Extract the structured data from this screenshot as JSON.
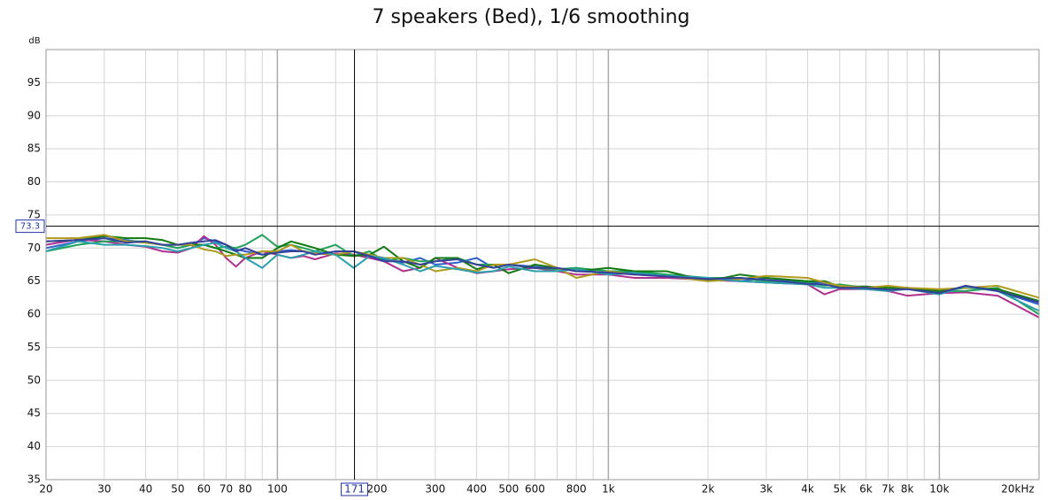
{
  "chart_data": {
    "type": "line",
    "title": "7 speakers (Bed), 1/6 smoothing",
    "y_label": "dB",
    "log_x": true,
    "grid": true,
    "xlim": [
      20,
      20000
    ],
    "ylim": [
      35,
      100
    ],
    "yticks": [
      35,
      40,
      45,
      50,
      55,
      60,
      65,
      70,
      75,
      80,
      85,
      90,
      95
    ],
    "xticks": [
      20,
      30,
      40,
      50,
      60,
      70,
      80,
      100,
      200,
      300,
      400,
      500,
      600,
      800,
      {
        "value": 1000,
        "label": "1k"
      },
      {
        "value": 2000,
        "label": "2k"
      },
      {
        "value": 3000,
        "label": "3k"
      },
      {
        "value": 4000,
        "label": "4k"
      },
      {
        "value": 5000,
        "label": "5k"
      },
      {
        "value": 6000,
        "label": "6k"
      },
      {
        "value": 7000,
        "label": "7k"
      },
      {
        "value": 8000,
        "label": "8k"
      },
      {
        "value": 10000,
        "label": "10k"
      },
      {
        "value": 20000,
        "label": "20kHz"
      }
    ],
    "xminorticks": [
      90,
      150,
      700,
      900,
      9000
    ],
    "cursor": {
      "x": 171,
      "y": 73.3
    },
    "x": [
      20,
      25,
      30,
      35,
      40,
      45,
      50,
      55,
      60,
      65,
      70,
      75,
      80,
      90,
      100,
      110,
      120,
      130,
      150,
      170,
      190,
      210,
      240,
      270,
      300,
      350,
      400,
      450,
      500,
      600,
      700,
      800,
      1000,
      1200,
      1500,
      2000,
      2500,
      3000,
      4000,
      4500,
      5000,
      6000,
      7000,
      8000,
      10000,
      12000,
      15000,
      20000
    ],
    "series": [
      {
        "color": "#2f5fcf",
        "values": [
          70.0,
          71.0,
          71.5,
          71.2,
          70.8,
          70.5,
          70.0,
          70.5,
          71.5,
          71.0,
          70.5,
          69.8,
          69.5,
          69.0,
          69.5,
          69.7,
          69.5,
          69.2,
          69.0,
          69.5,
          68.5,
          68.3,
          67.8,
          68.5,
          67.5,
          67.8,
          68.5,
          67.0,
          67.5,
          67.2,
          66.8,
          67.0,
          66.0,
          66.5,
          65.8,
          65.2,
          65.0,
          65.5,
          64.8,
          64.8,
          64.3,
          64.0,
          63.5,
          64.0,
          63.3,
          64.2,
          63.5,
          61.5
        ]
      },
      {
        "color": "#b0308f",
        "values": [
          70.5,
          71.3,
          71.0,
          70.5,
          70.2,
          69.5,
          69.3,
          70.0,
          71.8,
          70.5,
          68.5,
          67.2,
          68.5,
          69.5,
          69.0,
          68.5,
          68.8,
          68.3,
          69.2,
          69.0,
          68.5,
          68.0,
          66.5,
          67.0,
          68.5,
          67.0,
          66.2,
          66.5,
          66.8,
          67.0,
          66.5,
          66.0,
          66.0,
          65.5,
          65.5,
          65.2,
          65.0,
          64.8,
          64.5,
          63.0,
          63.8,
          63.8,
          63.5,
          62.8,
          63.2,
          63.3,
          62.8,
          59.5
        ]
      },
      {
        "color": "#21a35a",
        "values": [
          69.5,
          70.5,
          71.0,
          71.0,
          71.0,
          70.5,
          70.0,
          70.5,
          70.5,
          70.0,
          70.2,
          70.0,
          70.5,
          72.0,
          70.2,
          70.5,
          70.0,
          69.5,
          70.5,
          68.8,
          69.5,
          68.0,
          68.5,
          68.0,
          68.0,
          68.5,
          67.5,
          67.5,
          67.5,
          67.0,
          66.8,
          67.0,
          66.5,
          66.5,
          66.0,
          65.5,
          65.5,
          65.0,
          64.8,
          64.3,
          64.5,
          64.0,
          64.0,
          64.0,
          63.5,
          63.5,
          64.0,
          60.0
        ]
      },
      {
        "color": "#117a10",
        "values": [
          71.0,
          71.2,
          71.8,
          71.5,
          71.5,
          71.2,
          70.5,
          70.5,
          70.5,
          70.0,
          69.5,
          69.0,
          68.5,
          68.5,
          70.0,
          71.0,
          70.5,
          70.0,
          69.0,
          68.8,
          69.0,
          70.2,
          68.0,
          67.0,
          68.5,
          68.5,
          66.8,
          67.5,
          66.2,
          67.5,
          67.0,
          66.5,
          67.0,
          66.5,
          66.5,
          65.0,
          66.0,
          65.5,
          65.0,
          65.0,
          64.2,
          64.2,
          64.0,
          64.0,
          63.5,
          64.0,
          63.8,
          62.0
        ]
      },
      {
        "color": "#b09a1e",
        "values": [
          71.5,
          71.5,
          72.0,
          71.0,
          70.8,
          70.5,
          70.5,
          70.5,
          69.8,
          69.5,
          68.8,
          69.0,
          69.0,
          69.5,
          69.5,
          70.5,
          69.5,
          69.2,
          69.0,
          69.5,
          69.0,
          68.5,
          68.5,
          67.5,
          66.5,
          67.0,
          66.5,
          67.5,
          67.5,
          68.3,
          67.0,
          65.5,
          66.5,
          66.0,
          65.8,
          65.0,
          65.3,
          65.8,
          65.5,
          64.8,
          64.3,
          64.0,
          64.3,
          64.0,
          63.8,
          64.0,
          64.3,
          62.5
        ]
      },
      {
        "color": "#2c9fae",
        "values": [
          69.5,
          71.0,
          70.5,
          70.5,
          70.3,
          70.0,
          69.5,
          70.0,
          70.5,
          70.8,
          70.0,
          69.5,
          68.5,
          67.0,
          69.0,
          68.5,
          69.0,
          69.5,
          69.0,
          67.0,
          68.8,
          68.5,
          67.5,
          66.5,
          67.3,
          66.8,
          66.3,
          66.5,
          67.2,
          66.5,
          66.5,
          66.8,
          66.0,
          66.2,
          65.8,
          65.5,
          65.0,
          64.8,
          64.5,
          64.0,
          64.0,
          63.8,
          63.5,
          63.8,
          63.0,
          64.2,
          63.5,
          60.5
        ]
      },
      {
        "color": "#34409a",
        "values": [
          71.0,
          71.2,
          71.5,
          70.8,
          71.0,
          70.5,
          70.5,
          70.8,
          71.0,
          71.2,
          70.5,
          69.5,
          70.0,
          69.0,
          69.3,
          69.5,
          69.5,
          69.0,
          69.5,
          69.5,
          68.8,
          68.0,
          68.0,
          67.5,
          68.0,
          68.3,
          67.5,
          67.0,
          67.5,
          67.0,
          67.0,
          66.5,
          66.3,
          66.0,
          65.7,
          65.3,
          65.5,
          65.2,
          64.6,
          64.5,
          64.0,
          64.0,
          63.7,
          63.8,
          63.2,
          64.3,
          63.5,
          61.8
        ]
      }
    ]
  }
}
